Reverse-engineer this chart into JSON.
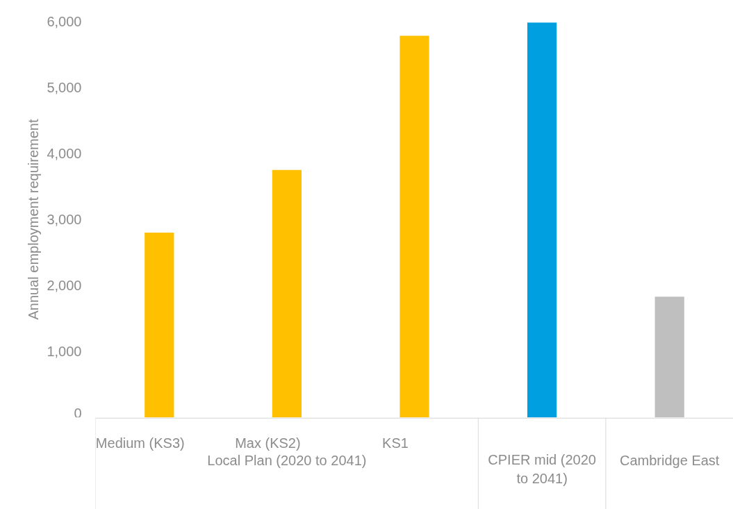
{
  "chart_data": {
    "type": "bar",
    "categories": [
      "Medium (KS3)",
      "Max (KS2)",
      "KS1",
      "CPIER mid (2020 to 2041)",
      "Cambridge East"
    ],
    "values": [
      2800,
      3750,
      5780,
      5980,
      1830
    ],
    "colors": [
      "#ffc000",
      "#ffc000",
      "#ffc000",
      "#009fe0",
      "#bfbfbf"
    ],
    "ylabel": "Annual employment requirement",
    "ylim": [
      0,
      6000
    ],
    "yticks": [
      {
        "value": 0,
        "label": "0"
      },
      {
        "value": 1000,
        "label": "1,000"
      },
      {
        "value": 2000,
        "label": "2,000"
      },
      {
        "value": 3000,
        "label": "3,000"
      },
      {
        "value": 4000,
        "label": "4,000"
      },
      {
        "value": 5000,
        "label": "5,000"
      },
      {
        "value": 6000,
        "label": "6,000"
      }
    ],
    "annotations": [
      "Local Plan (2020 to 2041)"
    ],
    "grid": false
  }
}
